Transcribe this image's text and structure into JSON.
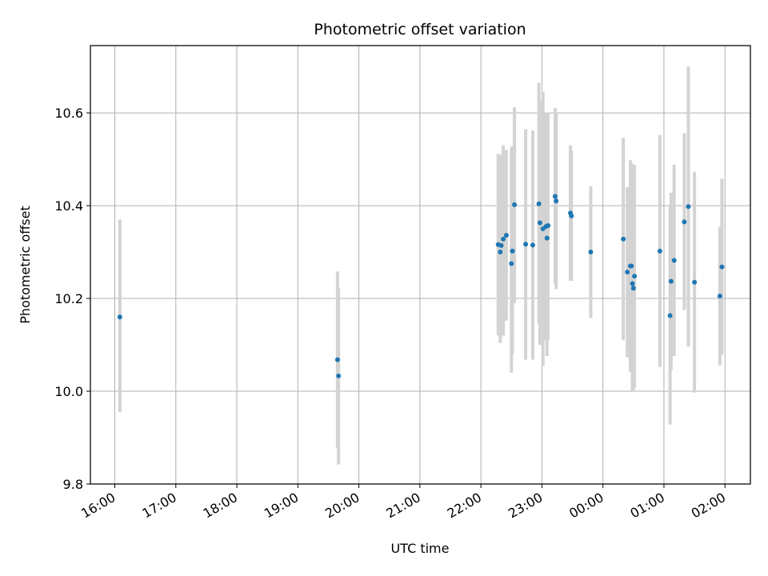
{
  "chart_data": {
    "type": "scatter",
    "title": "Photometric offset variation",
    "xlabel": "UTC time",
    "ylabel": "Photometric offset",
    "x_ticks": [
      "16:00",
      "17:00",
      "18:00",
      "19:00",
      "20:00",
      "21:00",
      "22:00",
      "23:00",
      "00:00",
      "01:00",
      "02:00"
    ],
    "y_ticks": [
      "9.8",
      "10.0",
      "10.2",
      "10.4",
      "10.6"
    ],
    "xlim": [
      "15:36",
      "02:25"
    ],
    "ylim": [
      9.8,
      10.745
    ],
    "grid": true,
    "colors": {
      "marker": "#1f77b4",
      "errorbar": "#d3d3d3",
      "grid": "#b0b0b0"
    },
    "series": [
      {
        "points": [
          {
            "x": "16:05",
            "y": 10.16,
            "ylo": 9.955,
            "yhi": 10.37
          },
          {
            "x": "19:39",
            "y": 10.068,
            "ylo": 9.877,
            "yhi": 10.258
          },
          {
            "x": "19:40",
            "y": 10.033,
            "ylo": 9.842,
            "yhi": 10.223
          },
          {
            "x": "22:17",
            "y": 10.316,
            "ylo": 10.12,
            "yhi": 10.512
          },
          {
            "x": "22:19",
            "y": 10.3,
            "ylo": 10.104,
            "yhi": 10.496
          },
          {
            "x": "22:20",
            "y": 10.314,
            "ylo": 10.118,
            "yhi": 10.51
          },
          {
            "x": "22:22",
            "y": 10.328,
            "ylo": 10.12,
            "yhi": 10.53
          },
          {
            "x": "22:25",
            "y": 10.336,
            "ylo": 10.152,
            "yhi": 10.52
          },
          {
            "x": "22:30",
            "y": 10.275,
            "ylo": 10.04,
            "yhi": 10.525
          },
          {
            "x": "22:31",
            "y": 10.302,
            "ylo": 10.08,
            "yhi": 10.528
          },
          {
            "x": "22:33",
            "y": 10.402,
            "ylo": 10.19,
            "yhi": 10.612
          },
          {
            "x": "22:44",
            "y": 10.317,
            "ylo": 10.068,
            "yhi": 10.565
          },
          {
            "x": "22:51",
            "y": 10.315,
            "ylo": 10.068,
            "yhi": 10.562
          },
          {
            "x": "22:57",
            "y": 10.404,
            "ylo": 10.146,
            "yhi": 10.665
          },
          {
            "x": "22:58",
            "y": 10.363,
            "ylo": 10.1,
            "yhi": 10.626
          },
          {
            "x": "23:01",
            "y": 10.35,
            "ylo": 10.054,
            "yhi": 10.645
          },
          {
            "x": "23:04",
            "y": 10.355,
            "ylo": 10.11,
            "yhi": 10.6
          },
          {
            "x": "23:05",
            "y": 10.33,
            "ylo": 10.076,
            "yhi": 10.585
          },
          {
            "x": "23:06",
            "y": 10.357,
            "ylo": 10.11,
            "yhi": 10.601
          },
          {
            "x": "23:13",
            "y": 10.42,
            "ylo": 10.23,
            "yhi": 10.61
          },
          {
            "x": "23:14",
            "y": 10.41,
            "ylo": 10.22,
            "yhi": 10.6
          },
          {
            "x": "23:28",
            "y": 10.384,
            "ylo": 10.238,
            "yhi": 10.53
          },
          {
            "x": "23:29",
            "y": 10.378,
            "ylo": 10.238,
            "yhi": 10.518
          },
          {
            "x": "23:48",
            "y": 10.3,
            "ylo": 10.158,
            "yhi": 10.442
          },
          {
            "x": "00:20",
            "y": 10.328,
            "ylo": 10.11,
            "yhi": 10.546
          },
          {
            "x": "00:24",
            "y": 10.257,
            "ylo": 10.073,
            "yhi": 10.44
          },
          {
            "x": "00:27",
            "y": 10.27,
            "ylo": 10.042,
            "yhi": 10.498
          },
          {
            "x": "00:28",
            "y": 10.27,
            "ylo": 10.052,
            "yhi": 10.492
          },
          {
            "x": "00:29",
            "y": 10.232,
            "ylo": 10.001,
            "yhi": 10.463
          },
          {
            "x": "00:30",
            "y": 10.222,
            "ylo": 10.0,
            "yhi": 10.443
          },
          {
            "x": "00:31",
            "y": 10.248,
            "ylo": 10.008,
            "yhi": 10.488
          },
          {
            "x": "00:56",
            "y": 10.302,
            "ylo": 10.052,
            "yhi": 10.552
          },
          {
            "x": "01:06",
            "y": 10.163,
            "ylo": 9.928,
            "yhi": 10.398
          },
          {
            "x": "01:07",
            "y": 10.237,
            "ylo": 10.046,
            "yhi": 10.428
          },
          {
            "x": "01:10",
            "y": 10.282,
            "ylo": 10.076,
            "yhi": 10.488
          },
          {
            "x": "01:20",
            "y": 10.365,
            "ylo": 10.175,
            "yhi": 10.556
          },
          {
            "x": "01:24",
            "y": 10.398,
            "ylo": 10.096,
            "yhi": 10.7
          },
          {
            "x": "01:30",
            "y": 10.235,
            "ylo": 9.997,
            "yhi": 10.473
          },
          {
            "x": "01:55",
            "y": 10.205,
            "ylo": 10.056,
            "yhi": 10.354
          },
          {
            "x": "01:57",
            "y": 10.268,
            "ylo": 10.078,
            "yhi": 10.458
          }
        ]
      }
    ]
  }
}
